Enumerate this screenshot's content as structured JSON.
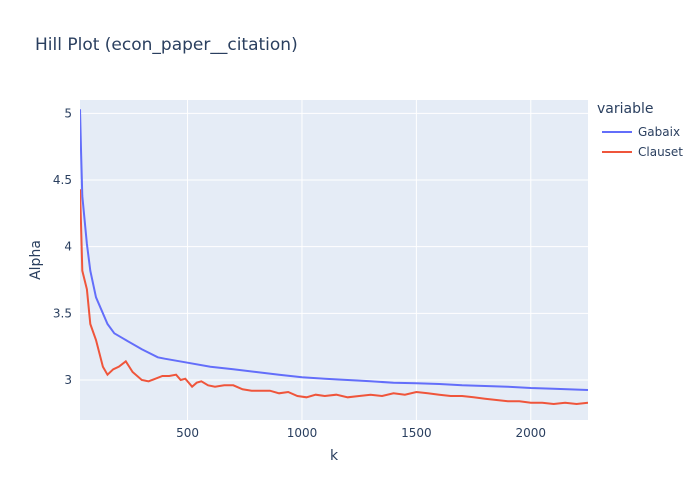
{
  "chart_data": {
    "type": "line",
    "title": "Hill Plot (econ_paper__citation)",
    "xlabel": "k",
    "ylabel": "Alpha",
    "xlim": [
      30,
      2250
    ],
    "ylim": [
      2.7,
      5.1
    ],
    "x_ticks": [
      500,
      1000,
      1500,
      2000
    ],
    "y_ticks": [
      3,
      3.5,
      4,
      4.5,
      5
    ],
    "y_tick_labels": [
      "3",
      "3.5",
      "4",
      "4.5",
      "5"
    ],
    "grid": true,
    "legend": {
      "title": "variable",
      "position": "right"
    },
    "series": [
      {
        "name": "Gabaix",
        "color": "#636efa",
        "x": [
          30,
          35,
          40,
          50,
          60,
          75,
          100,
          150,
          180,
          220,
          300,
          370,
          400,
          500,
          600,
          700,
          800,
          900,
          1000,
          1100,
          1200,
          1300,
          1400,
          1500,
          1600,
          1700,
          1800,
          1900,
          2000,
          2100,
          2250
        ],
        "y": [
          5.03,
          4.7,
          4.38,
          4.2,
          4.02,
          3.82,
          3.62,
          3.42,
          3.35,
          3.31,
          3.23,
          3.17,
          3.16,
          3.13,
          3.1,
          3.08,
          3.06,
          3.04,
          3.02,
          3.01,
          3.0,
          2.99,
          2.98,
          2.975,
          2.97,
          2.96,
          2.955,
          2.95,
          2.94,
          2.935,
          2.925
        ]
      },
      {
        "name": "Clauset",
        "color": "#ef553b",
        "x": [
          30,
          35,
          40,
          50,
          60,
          75,
          100,
          130,
          150,
          175,
          200,
          230,
          260,
          300,
          330,
          360,
          390,
          420,
          450,
          470,
          490,
          520,
          540,
          560,
          590,
          620,
          660,
          700,
          740,
          780,
          820,
          860,
          900,
          940,
          980,
          1020,
          1060,
          1100,
          1150,
          1200,
          1250,
          1300,
          1350,
          1400,
          1450,
          1500,
          1550,
          1600,
          1650,
          1700,
          1750,
          1800,
          1850,
          1900,
          1950,
          2000,
          2050,
          2100,
          2150,
          2200,
          2250
        ],
        "y": [
          4.43,
          4.15,
          3.82,
          3.75,
          3.68,
          3.42,
          3.3,
          3.1,
          3.04,
          3.08,
          3.1,
          3.14,
          3.06,
          3.0,
          2.99,
          3.01,
          3.03,
          3.03,
          3.04,
          3.0,
          3.01,
          2.95,
          2.98,
          2.99,
          2.96,
          2.95,
          2.96,
          2.96,
          2.93,
          2.92,
          2.92,
          2.92,
          2.9,
          2.91,
          2.88,
          2.87,
          2.89,
          2.88,
          2.89,
          2.87,
          2.88,
          2.89,
          2.88,
          2.9,
          2.89,
          2.91,
          2.9,
          2.89,
          2.88,
          2.88,
          2.87,
          2.86,
          2.85,
          2.84,
          2.84,
          2.83,
          2.83,
          2.82,
          2.83,
          2.82,
          2.83
        ]
      }
    ]
  }
}
